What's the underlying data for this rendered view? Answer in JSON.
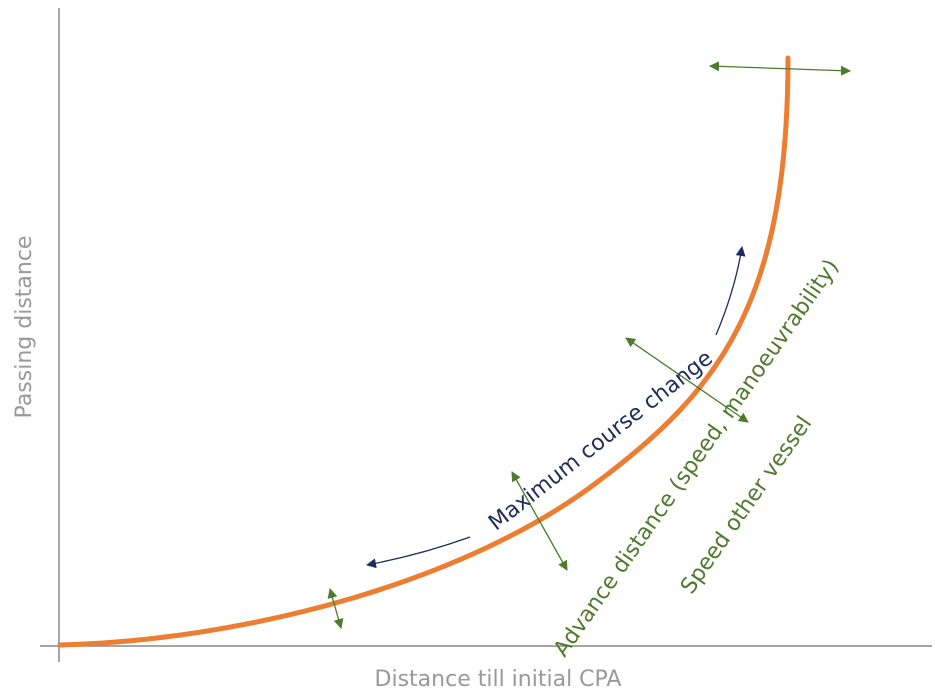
{
  "axes": {
    "y_label": "Passing distance",
    "x_label": "Distance till initial CPA"
  },
  "annotations": {
    "course_change_label": "Maximum course change",
    "advance_label_line1": "Advance distance (speed, manoeuvrability)",
    "advance_label_line2": "Speed other vessel"
  },
  "colors": {
    "curve": "#ED7D31",
    "axis": "#888888",
    "axis_text": "#999999",
    "navy": "#1F2D5A",
    "green": "#4E7A2E"
  }
}
